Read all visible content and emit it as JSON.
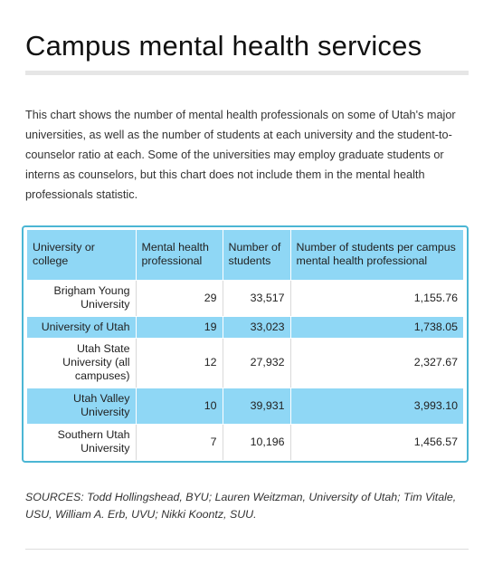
{
  "title": "Campus mental health services",
  "description": "This chart shows the number of mental health professionals on some of Utah's major universities, as well as the number of students at each university and the student-to-counselor ratio at each. Some of the universities may employ graduate students or interns as counselors, but this chart does not include them in the mental health professionals statistic.",
  "table": {
    "headers": [
      "University or college",
      "Mental health professional",
      "Number of students",
      "Number of students per campus mental health professional"
    ],
    "rows": [
      {
        "name": "Brigham Young University",
        "professionals": "29",
        "students": "33,517",
        "ratio": "1,155.76"
      },
      {
        "name": "University of Utah",
        "professionals": "19",
        "students": "33,023",
        "ratio": "1,738.05"
      },
      {
        "name": "Utah State University (all campuses)",
        "professionals": "12",
        "students": "27,932",
        "ratio": "2,327.67"
      },
      {
        "name": "Utah Valley University",
        "professionals": "10",
        "students": "39,931",
        "ratio": "3,993.10"
      },
      {
        "name": "Southern Utah University",
        "professionals": "7",
        "students": "10,196",
        "ratio": "1,456.57"
      }
    ]
  },
  "sources": "SOURCES: Todd Hollingshead, BYU; Lauren Weitzman, University of Utah; Tim Vitale, USU, William A. Erb, UVU; Nikki Koontz, SUU.",
  "colors": {
    "header_fill": "#8fd7f5",
    "frame_border": "#4bb6d4",
    "title_rule": "#e6e6e6"
  }
}
